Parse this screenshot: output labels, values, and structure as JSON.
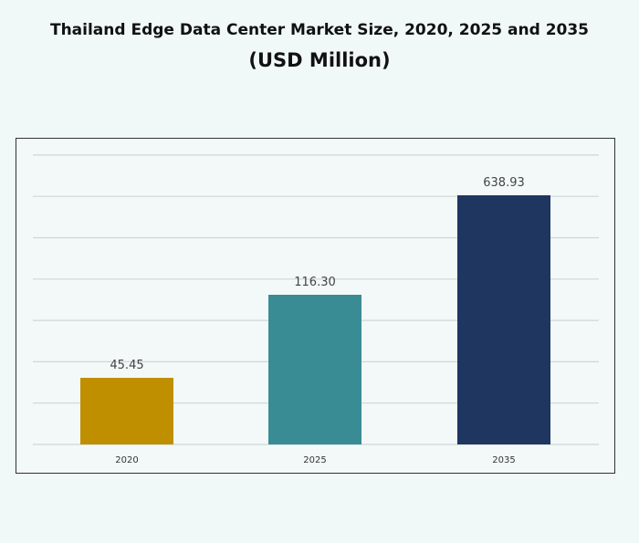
{
  "chart_data": {
    "type": "bar",
    "title": "Thailand Edge Data Center Market Size, 2020, 2025 and 2035",
    "subtitle": "(USD Million)",
    "categories": [
      "2020",
      "2025",
      "2035"
    ],
    "values": [
      45.45,
      116.3,
      638.93
    ],
    "value_labels": [
      "45.45",
      "116.30",
      "638.93"
    ],
    "colors": [
      "#bf8f00",
      "#3a8c94",
      "#1f3661"
    ],
    "xlabel": "",
    "ylabel": "",
    "grid": true,
    "y_tick_labels_shown": false,
    "legend": "none"
  }
}
